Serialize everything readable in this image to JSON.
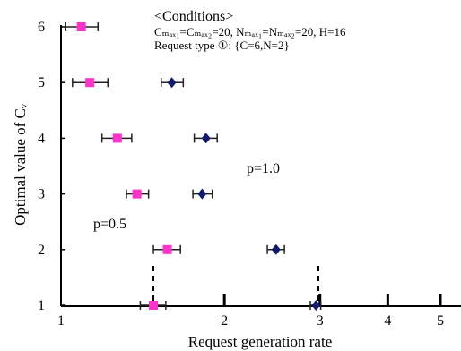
{
  "chart_data": {
    "type": "scatter",
    "xlabel": "Request generation rate",
    "ylabel": "Optimal value of Cᵥ",
    "xscale": "log",
    "xlim": [
      1,
      5.5
    ],
    "ylim": [
      1,
      6
    ],
    "xticks": [
      1,
      2,
      3,
      4,
      5
    ],
    "yticks": [
      1,
      2,
      3,
      4,
      5,
      6
    ],
    "annotations": {
      "conditions_title": "<Conditions>",
      "conditions_line1": "Cₘₐₓ₁=Cₘₐₓ₂=20, Nₘₐₓ₁=Nₘₐₓ₂=20, H=16",
      "conditions_line2": "Request type ①: {C=6,N=2}",
      "label_p05": "p=0.5",
      "label_p10": "p=1.0"
    },
    "dashed_markers": [
      1.48,
      2.98
    ],
    "series": [
      {
        "name": "p=0.5",
        "marker": "square",
        "color": "#ff33cc",
        "points": [
          {
            "x": 1.48,
            "y": 1,
            "xerr": [
              1.4,
              1.56
            ]
          },
          {
            "x": 1.57,
            "y": 2,
            "xerr": [
              1.48,
              1.66
            ]
          },
          {
            "x": 1.38,
            "y": 3,
            "xerr": [
              1.32,
              1.45
            ]
          },
          {
            "x": 1.27,
            "y": 4,
            "xerr": [
              1.19,
              1.35
            ]
          },
          {
            "x": 1.13,
            "y": 5,
            "xerr": [
              1.05,
              1.22
            ]
          },
          {
            "x": 1.09,
            "y": 6,
            "xerr": [
              1.02,
              1.17
            ]
          }
        ]
      },
      {
        "name": "p=1.0",
        "marker": "diamond",
        "color": "#0d1a6e",
        "points": [
          {
            "x": 2.95,
            "y": 1,
            "xerr": [
              2.88,
              3.01
            ]
          },
          {
            "x": 2.49,
            "y": 2,
            "xerr": [
              2.4,
              2.58
            ]
          },
          {
            "x": 1.82,
            "y": 3,
            "xerr": [
              1.75,
              1.9
            ]
          },
          {
            "x": 1.85,
            "y": 4,
            "xerr": [
              1.76,
              1.94
            ]
          },
          {
            "x": 1.6,
            "y": 5,
            "xerr": [
              1.53,
              1.68
            ]
          }
        ]
      }
    ]
  }
}
